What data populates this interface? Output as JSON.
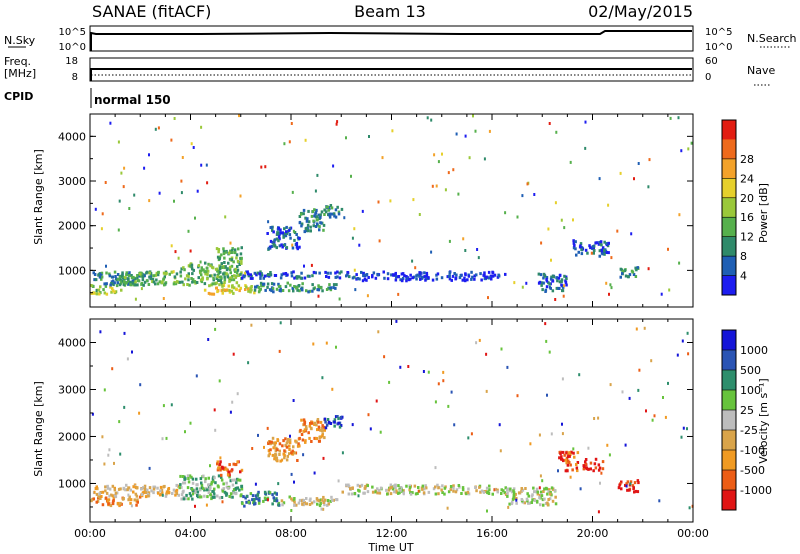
{
  "header": {
    "station": "SANAE (fitACF)",
    "beam": "Beam 13",
    "date": "02/May/2015"
  },
  "strips": {
    "nsky_label": "N.Sky",
    "nsearch_label": "N.Search",
    "freq_label_line1": "Freq.",
    "freq_label_line2": "[MHz]",
    "nave_label": "Nave",
    "cpid_label": "CPID",
    "cpid_value": "normal 150",
    "nsky_ticks": [
      "10^5",
      "10^0"
    ],
    "nsearch_ticks": [
      "10^5",
      "10^0"
    ],
    "freq_ticks": [
      "18",
      "8"
    ],
    "nave_ticks": [
      "60",
      "0"
    ]
  },
  "colors": {
    "power": [
      "#1d1df0",
      "#1f5fb4",
      "#2f8a6a",
      "#56b04c",
      "#9ac83a",
      "#e6d02c",
      "#f3a22a",
      "#ee6a1c",
      "#e21d12"
    ],
    "velocity": [
      "#1515d8",
      "#2a54b4",
      "#2d8e6c",
      "#67c33c",
      "#bdbdbd",
      "#d9a44a",
      "#f09a22",
      "#ec5d16",
      "#e01515"
    ]
  },
  "chart_data": [
    {
      "type": "heatmap",
      "panel": "power",
      "ylabel": "Slant Range [km]",
      "ylim": [
        180,
        4500
      ],
      "xlim_hours": [
        0,
        24
      ],
      "yticks": [
        "1000",
        "2000",
        "3000",
        "4000"
      ],
      "colorbar_label": "Power [dB]",
      "colorbar_ticks": [
        "4",
        "8",
        "12",
        "16",
        "20",
        "24",
        "28"
      ],
      "regions": [
        {
          "t0": 0.0,
          "t1": 1.2,
          "r0": 500,
          "r1": 700,
          "level": 20
        },
        {
          "t0": 0.0,
          "t1": 2.5,
          "r0": 700,
          "r1": 1000,
          "level": 10
        },
        {
          "t0": 1.2,
          "t1": 3.5,
          "r0": 700,
          "r1": 1000,
          "level": 14
        },
        {
          "t0": 3.5,
          "t1": 6.0,
          "r0": 700,
          "r1": 1200,
          "level": 16
        },
        {
          "t0": 5.0,
          "t1": 6.0,
          "r0": 1200,
          "r1": 1550,
          "level": 15
        },
        {
          "t0": 4.5,
          "t1": 6.5,
          "r0": 500,
          "r1": 700,
          "level": 22
        },
        {
          "t0": 6.5,
          "t1": 9.8,
          "r0": 550,
          "r1": 750,
          "level": 12
        },
        {
          "t0": 6.0,
          "t1": 10.5,
          "r0": 850,
          "r1": 1000,
          "level": 6
        },
        {
          "t0": 10.5,
          "t1": 16.5,
          "r0": 800,
          "r1": 1000,
          "level": 5
        },
        {
          "t0": 7.0,
          "t1": 8.3,
          "r0": 1500,
          "r1": 2000,
          "level": 8
        },
        {
          "t0": 8.3,
          "t1": 9.3,
          "r0": 1900,
          "r1": 2400,
          "level": 10
        },
        {
          "t0": 9.3,
          "t1": 10.0,
          "r0": 2200,
          "r1": 2500,
          "level": 10
        },
        {
          "t0": 17.8,
          "t1": 19.0,
          "r0": 550,
          "r1": 950,
          "level": 9
        },
        {
          "t0": 19.2,
          "t1": 20.6,
          "r0": 1350,
          "r1": 1700,
          "level": 7
        },
        {
          "t0": 21.0,
          "t1": 21.8,
          "r0": 850,
          "r1": 1100,
          "level": 12
        }
      ]
    },
    {
      "type": "heatmap",
      "panel": "velocity",
      "ylabel": "Slant Range [km]",
      "xlabel": "Time UT",
      "ylim": [
        180,
        4500
      ],
      "xlim_hours": [
        0,
        24
      ],
      "yticks": [
        "1000",
        "2000",
        "3000",
        "4000"
      ],
      "xticks": [
        "00:00",
        "04:00",
        "08:00",
        "12:00",
        "16:00",
        "20:00",
        "00:00"
      ],
      "colorbar_label": "Velocity [m s⁻¹]",
      "colorbar_ticks": [
        "1000",
        "500",
        "100",
        "25",
        "-25",
        "-100",
        "-500",
        "-1000"
      ],
      "regions": [
        {
          "t0": 0.0,
          "t1": 2.0,
          "r0": 550,
          "r1": 750,
          "level": 6
        },
        {
          "t0": 0.0,
          "t1": 3.5,
          "r0": 750,
          "r1": 1000,
          "level": 5
        },
        {
          "t0": 3.5,
          "t1": 6.0,
          "r0": 700,
          "r1": 1200,
          "level": 3
        },
        {
          "t0": 5.0,
          "t1": 6.0,
          "r0": 1200,
          "r1": 1500,
          "level": 7
        },
        {
          "t0": 6.0,
          "t1": 7.5,
          "r0": 550,
          "r1": 850,
          "level": 2
        },
        {
          "t0": 7.5,
          "t1": 9.8,
          "r0": 550,
          "r1": 750,
          "level": 4
        },
        {
          "t0": 10.0,
          "t1": 16.5,
          "r0": 800,
          "r1": 1000,
          "level": 4
        },
        {
          "t0": 7.0,
          "t1": 8.3,
          "r0": 1500,
          "r1": 2000,
          "level": 6
        },
        {
          "t0": 8.3,
          "t1": 9.3,
          "r0": 1900,
          "r1": 2400,
          "level": 6
        },
        {
          "t0": 9.3,
          "t1": 10.0,
          "r0": 2200,
          "r1": 2500,
          "level": 1
        },
        {
          "t0": 16.5,
          "t1": 18.5,
          "r0": 550,
          "r1": 950,
          "level": 4
        },
        {
          "t0": 18.6,
          "t1": 19.4,
          "r0": 1300,
          "r1": 1700,
          "level": 7
        },
        {
          "t0": 19.6,
          "t1": 20.4,
          "r0": 1300,
          "r1": 1550,
          "level": 8
        },
        {
          "t0": 21.0,
          "t1": 21.8,
          "r0": 850,
          "r1": 1100,
          "level": 8
        }
      ]
    }
  ]
}
